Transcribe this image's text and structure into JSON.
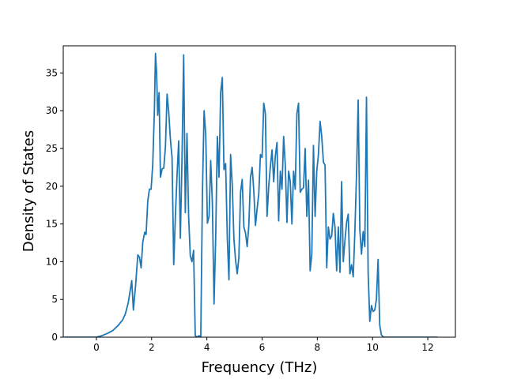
{
  "chart_data": {
    "type": "line",
    "title": "",
    "xlabel": "Frequency (THz)",
    "ylabel": "Density of States",
    "xlim": [
      -1.2,
      13.0
    ],
    "ylim": [
      0,
      38.6
    ],
    "x_ticks": [
      0,
      2,
      4,
      6,
      8,
      10,
      12
    ],
    "y_ticks": [
      0,
      5,
      10,
      15,
      20,
      25,
      30,
      35
    ],
    "grid": false,
    "legend": "none",
    "colors": {
      "line": "#1f77b4",
      "axes": "#000000",
      "background": "#ffffff"
    },
    "series": [
      {
        "points": [
          [
            -1.16,
            0
          ],
          [
            -0.5,
            0
          ],
          [
            0.0,
            0
          ],
          [
            0.2,
            0.2
          ],
          [
            0.4,
            0.5
          ],
          [
            0.6,
            0.9
          ],
          [
            0.8,
            1.6
          ],
          [
            0.95,
            2.3
          ],
          [
            1.05,
            3.1
          ],
          [
            1.15,
            4.5
          ],
          [
            1.22,
            6.1
          ],
          [
            1.28,
            7.5
          ],
          [
            1.34,
            3.6
          ],
          [
            1.42,
            6.9
          ],
          [
            1.5,
            10.9
          ],
          [
            1.56,
            10.6
          ],
          [
            1.62,
            9.2
          ],
          [
            1.68,
            12.6
          ],
          [
            1.75,
            13.9
          ],
          [
            1.8,
            13.6
          ],
          [
            1.86,
            18.0
          ],
          [
            1.92,
            19.6
          ],
          [
            1.98,
            19.6
          ],
          [
            2.04,
            22.8
          ],
          [
            2.1,
            30.0
          ],
          [
            2.14,
            37.6
          ],
          [
            2.18,
            35.0
          ],
          [
            2.22,
            29.4
          ],
          [
            2.27,
            32.4
          ],
          [
            2.32,
            21.2
          ],
          [
            2.38,
            22.3
          ],
          [
            2.44,
            22.4
          ],
          [
            2.5,
            25.2
          ],
          [
            2.56,
            32.2
          ],
          [
            2.62,
            29.8
          ],
          [
            2.68,
            26.2
          ],
          [
            2.74,
            23.8
          ],
          [
            2.8,
            9.6
          ],
          [
            2.86,
            16.0
          ],
          [
            2.92,
            21.4
          ],
          [
            2.98,
            26.0
          ],
          [
            3.04,
            13.1
          ],
          [
            3.1,
            23.6
          ],
          [
            3.16,
            37.4
          ],
          [
            3.22,
            16.5
          ],
          [
            3.28,
            27.0
          ],
          [
            3.34,
            16.0
          ],
          [
            3.4,
            10.8
          ],
          [
            3.46,
            10.0
          ],
          [
            3.52,
            11.5
          ],
          [
            3.58,
            0.2
          ],
          [
            3.65,
            0.0
          ],
          [
            3.72,
            0.2
          ],
          [
            3.78,
            0.0
          ],
          [
            3.84,
            19.2
          ],
          [
            3.9,
            30.0
          ],
          [
            3.96,
            26.8
          ],
          [
            4.02,
            15.1
          ],
          [
            4.08,
            16.0
          ],
          [
            4.14,
            23.4
          ],
          [
            4.2,
            17.8
          ],
          [
            4.26,
            4.4
          ],
          [
            4.32,
            13.2
          ],
          [
            4.38,
            26.6
          ],
          [
            4.44,
            21.2
          ],
          [
            4.5,
            32.4
          ],
          [
            4.56,
            34.4
          ],
          [
            4.62,
            22.2
          ],
          [
            4.68,
            23.0
          ],
          [
            4.74,
            13.2
          ],
          [
            4.8,
            7.6
          ],
          [
            4.86,
            24.2
          ],
          [
            4.92,
            20.2
          ],
          [
            4.98,
            13.0
          ],
          [
            5.04,
            10.2
          ],
          [
            5.1,
            8.4
          ],
          [
            5.16,
            10.6
          ],
          [
            5.22,
            19.2
          ],
          [
            5.28,
            20.9
          ],
          [
            5.34,
            14.6
          ],
          [
            5.4,
            13.8
          ],
          [
            5.46,
            12.0
          ],
          [
            5.52,
            14.8
          ],
          [
            5.58,
            21.2
          ],
          [
            5.64,
            22.5
          ],
          [
            5.7,
            19.4
          ],
          [
            5.76,
            14.8
          ],
          [
            5.82,
            17.0
          ],
          [
            5.88,
            19.0
          ],
          [
            5.94,
            24.2
          ],
          [
            6.0,
            23.8
          ],
          [
            6.06,
            31.0
          ],
          [
            6.12,
            29.6
          ],
          [
            6.18,
            16.0
          ],
          [
            6.24,
            20.0
          ],
          [
            6.3,
            22.6
          ],
          [
            6.36,
            24.8
          ],
          [
            6.42,
            20.6
          ],
          [
            6.48,
            24.0
          ],
          [
            6.54,
            25.8
          ],
          [
            6.6,
            15.4
          ],
          [
            6.66,
            22.0
          ],
          [
            6.72,
            19.6
          ],
          [
            6.78,
            26.6
          ],
          [
            6.84,
            22.8
          ],
          [
            6.9,
            15.2
          ],
          [
            6.96,
            22.0
          ],
          [
            7.02,
            20.6
          ],
          [
            7.08,
            15.0
          ],
          [
            7.14,
            22.0
          ],
          [
            7.2,
            19.6
          ],
          [
            7.26,
            29.6
          ],
          [
            7.32,
            31.0
          ],
          [
            7.38,
            19.2
          ],
          [
            7.44,
            19.6
          ],
          [
            7.5,
            19.8
          ],
          [
            7.56,
            25.0
          ],
          [
            7.62,
            16.0
          ],
          [
            7.68,
            20.8
          ],
          [
            7.74,
            8.8
          ],
          [
            7.8,
            11.0
          ],
          [
            7.86,
            25.4
          ],
          [
            7.92,
            16.0
          ],
          [
            7.98,
            22.0
          ],
          [
            8.04,
            24.2
          ],
          [
            8.1,
            28.6
          ],
          [
            8.16,
            26.6
          ],
          [
            8.22,
            23.2
          ],
          [
            8.28,
            22.8
          ],
          [
            8.34,
            9.2
          ],
          [
            8.4,
            14.6
          ],
          [
            8.46,
            13.0
          ],
          [
            8.52,
            13.4
          ],
          [
            8.58,
            16.4
          ],
          [
            8.64,
            14.6
          ],
          [
            8.7,
            8.8
          ],
          [
            8.76,
            14.6
          ],
          [
            8.82,
            8.6
          ],
          [
            8.88,
            20.6
          ],
          [
            8.94,
            10.0
          ],
          [
            9.0,
            12.8
          ],
          [
            9.06,
            15.2
          ],
          [
            9.12,
            16.3
          ],
          [
            9.18,
            8.4
          ],
          [
            9.24,
            9.6
          ],
          [
            9.3,
            8.0
          ],
          [
            9.36,
            14.0
          ],
          [
            9.42,
            21.6
          ],
          [
            9.48,
            31.4
          ],
          [
            9.54,
            14.2
          ],
          [
            9.6,
            11.0
          ],
          [
            9.66,
            14.0
          ],
          [
            9.72,
            12.0
          ],
          [
            9.78,
            31.8
          ],
          [
            9.84,
            8.6
          ],
          [
            9.9,
            2.1
          ],
          [
            9.96,
            4.2
          ],
          [
            10.02,
            3.4
          ],
          [
            10.08,
            3.6
          ],
          [
            10.14,
            5.0
          ],
          [
            10.2,
            10.3
          ],
          [
            10.26,
            1.6
          ],
          [
            10.32,
            0.3
          ],
          [
            10.4,
            0.0
          ],
          [
            11.0,
            0.0
          ],
          [
            12.36,
            0.0
          ]
        ]
      }
    ]
  }
}
